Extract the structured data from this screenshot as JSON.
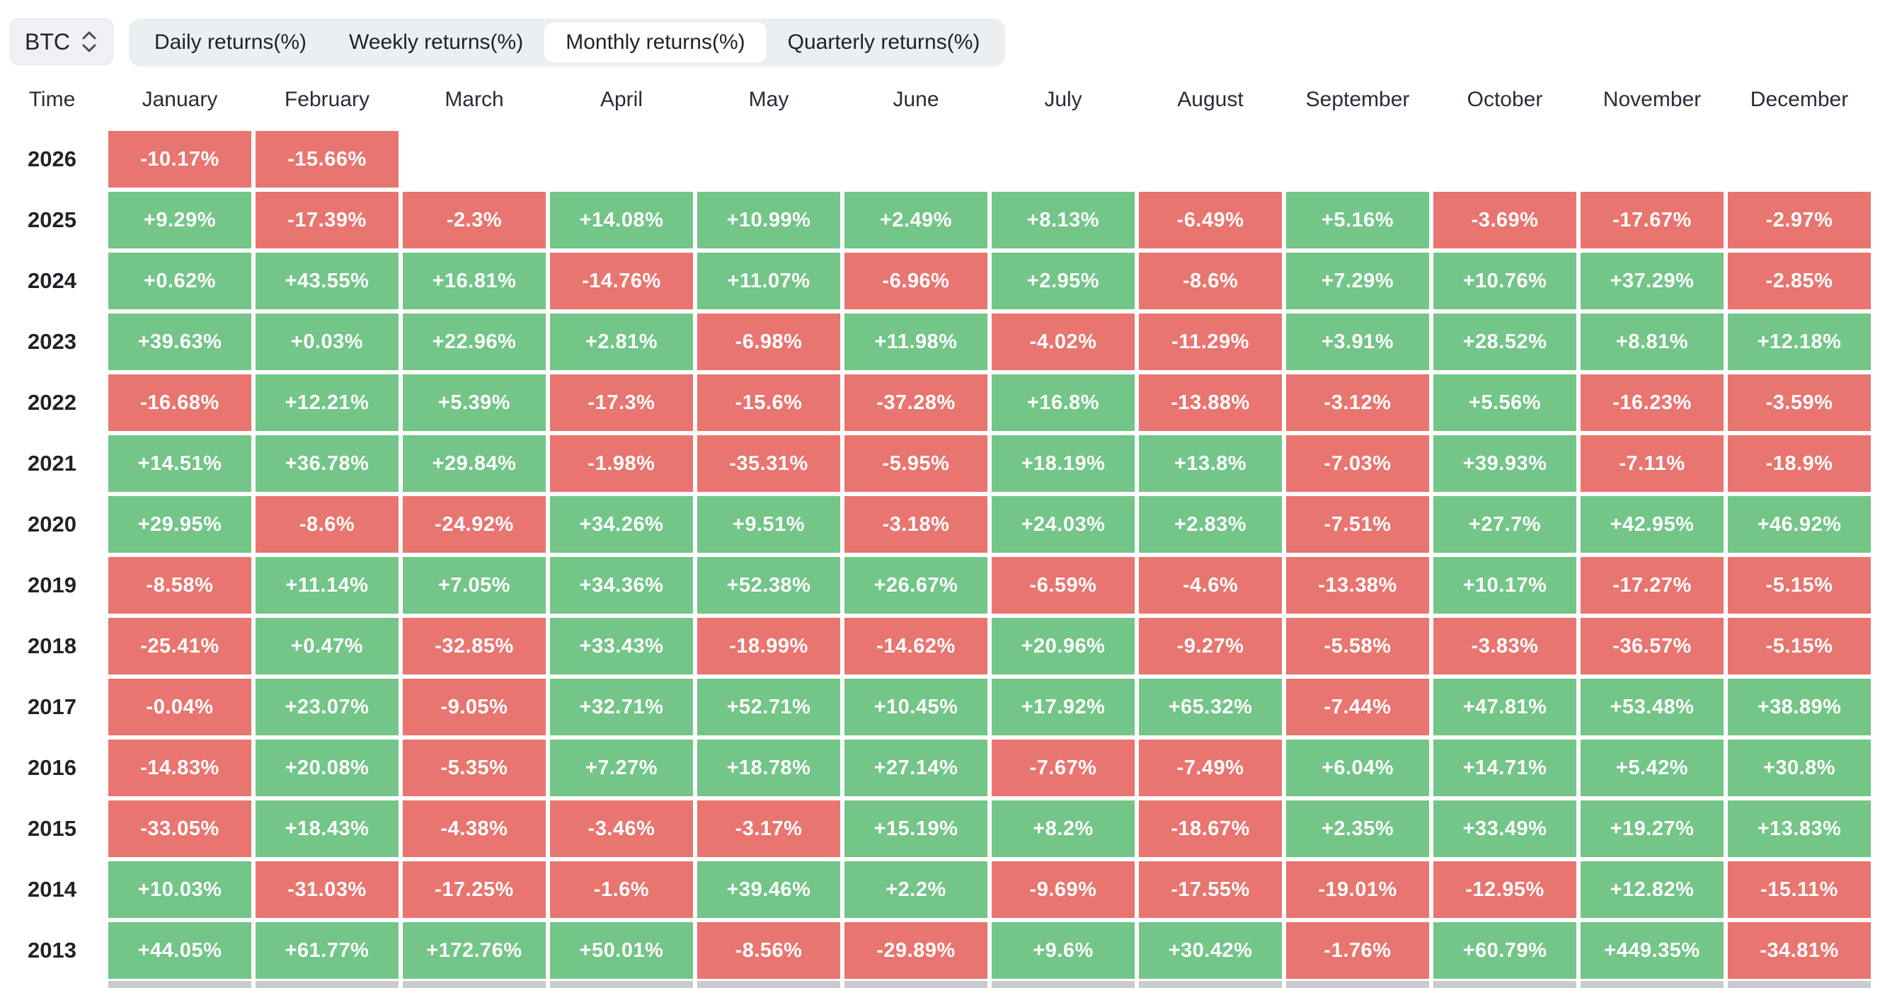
{
  "asset_selector": {
    "value": "BTC",
    "icon": "updown-chevron-icon"
  },
  "tabs": {
    "items": [
      {
        "label": "Daily returns(%)",
        "active": false
      },
      {
        "label": "Weekly returns(%)",
        "active": false
      },
      {
        "label": "Monthly returns(%)",
        "active": true
      },
      {
        "label": "Quarterly returns(%)",
        "active": false
      }
    ]
  },
  "table": {
    "time_header": "Time",
    "months": [
      "January",
      "February",
      "March",
      "April",
      "May",
      "June",
      "July",
      "August",
      "September",
      "October",
      "November",
      "December"
    ],
    "rows": [
      {
        "year": "2026",
        "values": [
          "-10.17%",
          "-15.66%",
          "",
          "",
          "",
          "",
          "",
          "",
          "",
          "",
          "",
          ""
        ]
      },
      {
        "year": "2025",
        "values": [
          "+9.29%",
          "-17.39%",
          "-2.3%",
          "+14.08%",
          "+10.99%",
          "+2.49%",
          "+8.13%",
          "-6.49%",
          "+5.16%",
          "-3.69%",
          "-17.67%",
          "-2.97%"
        ]
      },
      {
        "year": "2024",
        "values": [
          "+0.62%",
          "+43.55%",
          "+16.81%",
          "-14.76%",
          "+11.07%",
          "-6.96%",
          "+2.95%",
          "-8.6%",
          "+7.29%",
          "+10.76%",
          "+37.29%",
          "-2.85%"
        ]
      },
      {
        "year": "2023",
        "values": [
          "+39.63%",
          "+0.03%",
          "+22.96%",
          "+2.81%",
          "-6.98%",
          "+11.98%",
          "-4.02%",
          "-11.29%",
          "+3.91%",
          "+28.52%",
          "+8.81%",
          "+12.18%"
        ]
      },
      {
        "year": "2022",
        "values": [
          "-16.68%",
          "+12.21%",
          "+5.39%",
          "-17.3%",
          "-15.6%",
          "-37.28%",
          "+16.8%",
          "-13.88%",
          "-3.12%",
          "+5.56%",
          "-16.23%",
          "-3.59%"
        ]
      },
      {
        "year": "2021",
        "values": [
          "+14.51%",
          "+36.78%",
          "+29.84%",
          "-1.98%",
          "-35.31%",
          "-5.95%",
          "+18.19%",
          "+13.8%",
          "-7.03%",
          "+39.93%",
          "-7.11%",
          "-18.9%"
        ]
      },
      {
        "year": "2020",
        "values": [
          "+29.95%",
          "-8.6%",
          "-24.92%",
          "+34.26%",
          "+9.51%",
          "-3.18%",
          "+24.03%",
          "+2.83%",
          "-7.51%",
          "+27.7%",
          "+42.95%",
          "+46.92%"
        ]
      },
      {
        "year": "2019",
        "values": [
          "-8.58%",
          "+11.14%",
          "+7.05%",
          "+34.36%",
          "+52.38%",
          "+26.67%",
          "-6.59%",
          "-4.6%",
          "-13.38%",
          "+10.17%",
          "-17.27%",
          "-5.15%"
        ]
      },
      {
        "year": "2018",
        "values": [
          "-25.41%",
          "+0.47%",
          "-32.85%",
          "+33.43%",
          "-18.99%",
          "-14.62%",
          "+20.96%",
          "-9.27%",
          "-5.58%",
          "-3.83%",
          "-36.57%",
          "-5.15%"
        ]
      },
      {
        "year": "2017",
        "values": [
          "-0.04%",
          "+23.07%",
          "-9.05%",
          "+32.71%",
          "+52.71%",
          "+10.45%",
          "+17.92%",
          "+65.32%",
          "-7.44%",
          "+47.81%",
          "+53.48%",
          "+38.89%"
        ]
      },
      {
        "year": "2016",
        "values": [
          "-14.83%",
          "+20.08%",
          "-5.35%",
          "+7.27%",
          "+18.78%",
          "+27.14%",
          "-7.67%",
          "-7.49%",
          "+6.04%",
          "+14.71%",
          "+5.42%",
          "+30.8%"
        ]
      },
      {
        "year": "2015",
        "values": [
          "-33.05%",
          "+18.43%",
          "-4.38%",
          "-3.46%",
          "-3.17%",
          "+15.19%",
          "+8.2%",
          "-18.67%",
          "+2.35%",
          "+33.49%",
          "+19.27%",
          "+13.83%"
        ]
      },
      {
        "year": "2014",
        "values": [
          "+10.03%",
          "-31.03%",
          "-17.25%",
          "-1.6%",
          "+39.46%",
          "+2.2%",
          "-9.69%",
          "-17.55%",
          "-19.01%",
          "-12.95%",
          "+12.82%",
          "-15.11%"
        ]
      },
      {
        "year": "2013",
        "values": [
          "+44.05%",
          "+61.77%",
          "+172.76%",
          "+50.01%",
          "-8.56%",
          "-29.89%",
          "+9.6%",
          "+30.42%",
          "-1.76%",
          "+60.79%",
          "+449.35%",
          "-34.81%"
        ]
      }
    ]
  },
  "colors": {
    "positive_bg": "#73c588",
    "negative_bg": "#e8756f",
    "tab_bg": "#eceff2",
    "tab_active_bg": "#ffffff",
    "control_bg": "#eef0f3",
    "text_dark": "#1e2329",
    "cell_text": "#ffffff",
    "partial_row_bg": "#c9cbce"
  }
}
